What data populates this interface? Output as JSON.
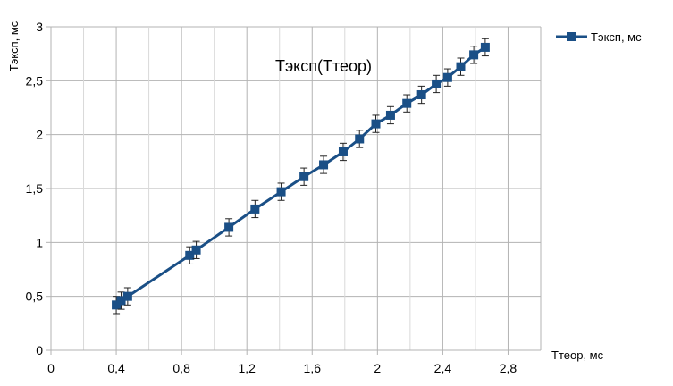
{
  "chart_data": {
    "type": "line",
    "title": "Тэксп(Ттеор)",
    "xlabel": "Ттеор, мс",
    "ylabel": "Тэксп, мс",
    "xlim": [
      0,
      3.0
    ],
    "ylim": [
      0,
      3
    ],
    "x_ticks": [
      0,
      0.4,
      0.8,
      1.2,
      1.6,
      2.0,
      2.4,
      2.8
    ],
    "x_tick_labels": [
      "0",
      "0,4",
      "0,8",
      "1,2",
      "1,6",
      "2",
      "2,4",
      "2,8"
    ],
    "y_ticks": [
      0,
      0.5,
      1,
      1.5,
      2,
      2.5,
      3
    ],
    "y_tick_labels": [
      "0",
      "0,5",
      "1",
      "1,5",
      "2",
      "2,5",
      "3"
    ],
    "grid": true,
    "legend_position": "top-right",
    "series": [
      {
        "name": "Тэксп, мс",
        "color": "#1a4f86",
        "marker": "square",
        "error_bar": 0.08,
        "points": [
          {
            "x": 0.4,
            "y": 0.42
          },
          {
            "x": 0.43,
            "y": 0.46
          },
          {
            "x": 0.47,
            "y": 0.5
          },
          {
            "x": 0.85,
            "y": 0.88
          },
          {
            "x": 0.89,
            "y": 0.93
          },
          {
            "x": 1.09,
            "y": 1.14
          },
          {
            "x": 1.25,
            "y": 1.31
          },
          {
            "x": 1.41,
            "y": 1.47
          },
          {
            "x": 1.55,
            "y": 1.61
          },
          {
            "x": 1.67,
            "y": 1.72
          },
          {
            "x": 1.79,
            "y": 1.84
          },
          {
            "x": 1.89,
            "y": 1.96
          },
          {
            "x": 1.99,
            "y": 2.1
          },
          {
            "x": 2.08,
            "y": 2.18
          },
          {
            "x": 2.18,
            "y": 2.29
          },
          {
            "x": 2.27,
            "y": 2.37
          },
          {
            "x": 2.36,
            "y": 2.47
          },
          {
            "x": 2.43,
            "y": 2.53
          },
          {
            "x": 2.51,
            "y": 2.63
          },
          {
            "x": 2.59,
            "y": 2.74
          },
          {
            "x": 2.66,
            "y": 2.81
          }
        ]
      }
    ]
  }
}
